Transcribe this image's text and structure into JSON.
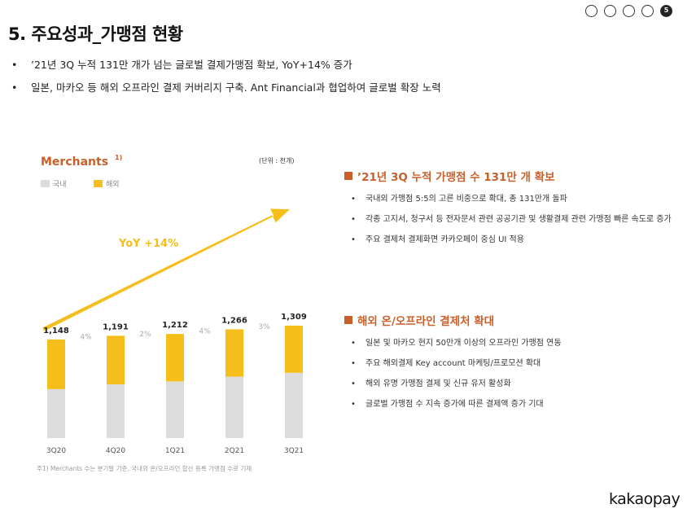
{
  "page": {
    "title": "5. 주요성과_가맹점 현황",
    "pager": {
      "pages": [
        "",
        "",
        "",
        "",
        "5"
      ],
      "active_index": 4
    },
    "bullets": [
      "’21년 3Q 누적 131만 개가 넘는 글로벌 결제가맹점 확보, YoY+14% 증가",
      "일본, 마카오 등 해외 오프라인 결제 커버리지 구축.  Ant Financial과 협업하여 글로벌 확장 노력"
    ],
    "logo": "kakaopay"
  },
  "chart_data": {
    "type": "bar",
    "title": "Merchants",
    "title_superscript": "1)",
    "unit_note": "(단위 : 천개)",
    "categories": [
      "3Q20",
      "4Q20",
      "1Q21",
      "2Q21",
      "3Q21"
    ],
    "totals": [
      1148,
      1191,
      1212,
      1266,
      1309
    ],
    "total_labels": [
      "1,148",
      "1,191",
      "1,212",
      "1,266",
      "1,309"
    ],
    "series": [
      {
        "name": "국내",
        "color": "#dcdcdc",
        "values": [
          570,
          625,
          660,
          715,
          760
        ]
      },
      {
        "name": "해외",
        "color": "#f6be1a",
        "values": [
          578,
          566,
          552,
          551,
          549
        ]
      }
    ],
    "growth_labels": [
      "4%",
      "2%",
      "4%",
      "3%"
    ],
    "trend_label": "YoY +14%",
    "legend_position": "top-left",
    "grid": false,
    "footnote": "주1) Merchants 수는 분기말 기준, 국내외 온/오프라인 합산 등록 가맹점 수로 기재"
  },
  "sections": [
    {
      "title": "’21년 3Q 누적 가맹점 수 131만 개 확보",
      "items": [
        "국내외 가맹점 5:5의 고른 비중으로 확대,  총 131만개 돌파",
        "각종 고지서, 청구서 등 전자문서 관련 공공기관 및 생활결제 관련 가맹점 빠른 속도로 증가",
        "주요 결제처 결제화면 카카오페이 중심 UI 적용"
      ]
    },
    {
      "title": "해외 온/오프라인 결제처 확대",
      "items": [
        "일본 및 마카오 현지 50만개 이상의 오프라인 가맹점 연동",
        "주요 해외결제 Key account 마케팅/프로모션 확대",
        "해외 유명 가맹점 결제 및 신규 유저 활성화",
        "글로벌 가맹점 수 지속 증가에 따른 결제액 증가 기대"
      ]
    }
  ]
}
